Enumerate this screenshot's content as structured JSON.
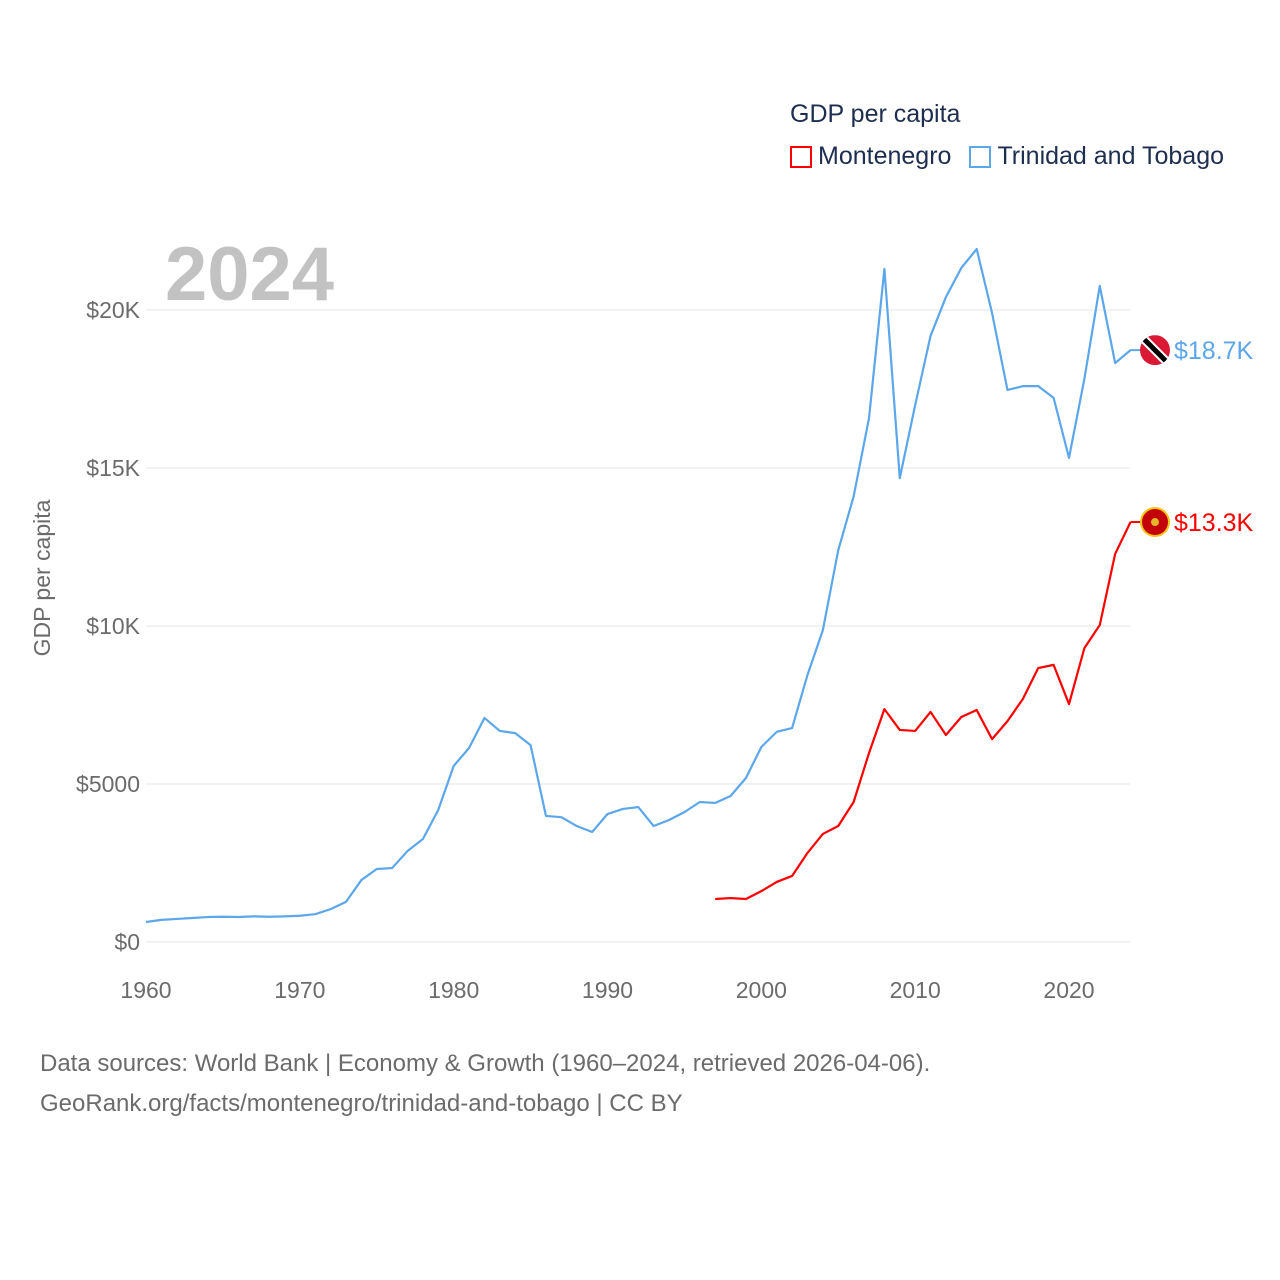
{
  "chart_data": {
    "type": "line",
    "title": "GDP per capita",
    "year_label": "2024",
    "xlabel": "",
    "ylabel": "GDP per capita",
    "xlim": [
      1960,
      2024
    ],
    "ylim": [
      0,
      22500
    ],
    "x_ticks": [
      1960,
      1970,
      1980,
      1990,
      2000,
      2010,
      2020
    ],
    "x_tick_labels": [
      "1960",
      "1970",
      "1980",
      "1990",
      "2000",
      "2010",
      "2020"
    ],
    "y_ticks": [
      0,
      5000,
      10000,
      15000,
      20000
    ],
    "y_tick_labels": [
      "$0",
      "$5000",
      "$10K",
      "$15K",
      "$20K"
    ],
    "grid": true,
    "legend_placement": "top-right",
    "series": [
      {
        "name": "Montenegro",
        "color": "#ff0000",
        "flag": "montenegro-flag",
        "end_label": "$13.3K",
        "start_year": 1997,
        "values": [
          1360,
          1390,
          1360,
          1610,
          1900,
          2090,
          2820,
          3420,
          3670,
          4430,
          5980,
          7370,
          6710,
          6680,
          7280,
          6550,
          7120,
          7340,
          6420,
          6990,
          7690,
          8670,
          8770,
          7530,
          9300,
          10030,
          12280,
          13290
        ]
      },
      {
        "name": "Trinidad and Tobago",
        "color": "#5ca6ea",
        "flag": "trinidad-flag",
        "end_label": "$18.7K",
        "start_year": 1960,
        "values": [
          633,
          700,
          730,
          760,
          790,
          800,
          790,
          810,
          800,
          810,
          830,
          880,
          1040,
          1270,
          1960,
          2310,
          2340,
          2880,
          3260,
          4180,
          5570,
          6140,
          7090,
          6680,
          6610,
          6230,
          3990,
          3950,
          3670,
          3480,
          4050,
          4210,
          4270,
          3670,
          3860,
          4110,
          4430,
          4400,
          4620,
          5190,
          6170,
          6650,
          6770,
          8450,
          9870,
          12400,
          14100,
          16580,
          21300,
          14680,
          16990,
          19180,
          20410,
          21330,
          21930,
          19900,
          17470,
          17590,
          17590,
          17220,
          15320,
          17820,
          20760,
          18320,
          18730
        ]
      }
    ]
  },
  "footer": {
    "line1": "Data sources: World Bank | Economy & Growth (1960–2024, retrieved 2026-04-06).",
    "line2": "GeoRank.org/facts/montenegro/trinidad-and-tobago | CC BY"
  }
}
